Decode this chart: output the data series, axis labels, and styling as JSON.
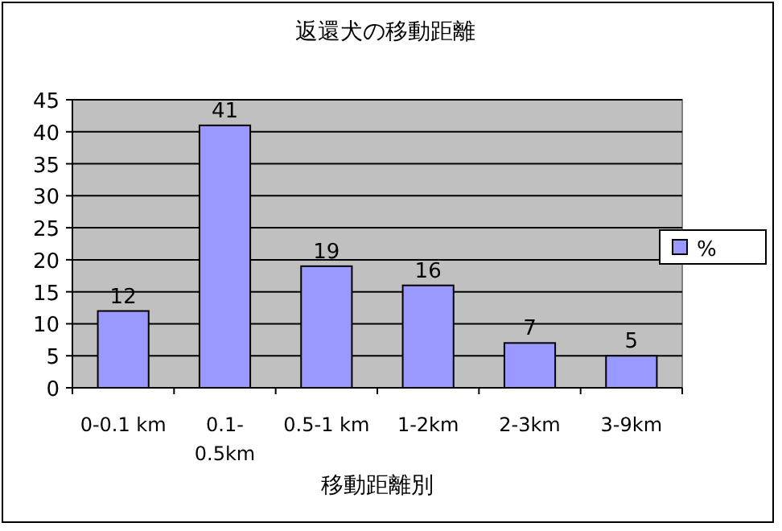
{
  "chart_data": {
    "type": "bar",
    "title": "返還犬の移動距離",
    "xlabel": "移動距離別",
    "categories": [
      "0-0.1 km",
      "0.1-0.5km",
      "0.5-1 km",
      "1-2km",
      "2-3km",
      "3-9km"
    ],
    "series": [
      {
        "name": "%",
        "color": "#9999ff",
        "values": [
          12,
          41,
          19,
          16,
          7,
          5
        ]
      }
    ],
    "ylim": [
      0,
      45
    ],
    "yticks": [
      0,
      5,
      10,
      15,
      20,
      25,
      30,
      35,
      40,
      45
    ],
    "grid": "y",
    "legend": "right",
    "data_labels": true
  }
}
